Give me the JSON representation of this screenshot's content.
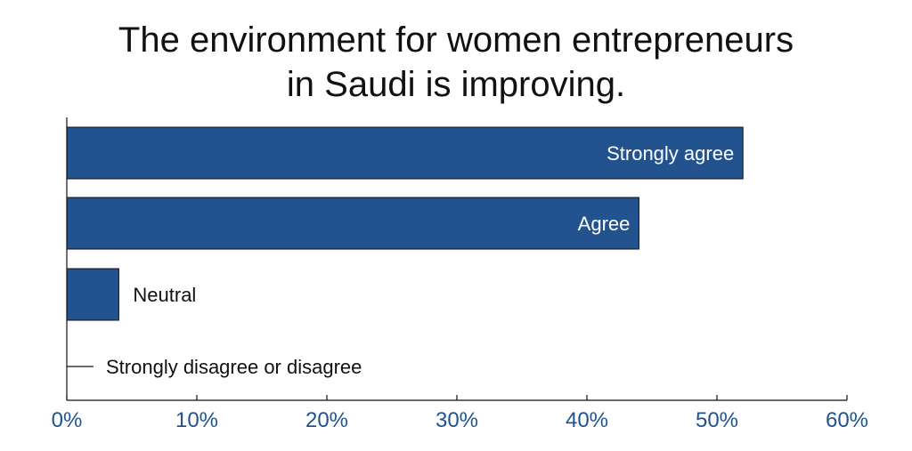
{
  "chart_data": {
    "type": "bar",
    "orientation": "horizontal",
    "title_lines": [
      "The environment for women entrepreneurs",
      "in Saudi is improving."
    ],
    "categories": [
      "Strongly agree",
      "Agree",
      "Neutral",
      "Strongly disagree or disagree"
    ],
    "values": [
      52,
      44,
      4,
      1.5
    ],
    "xlim": [
      0,
      60
    ],
    "xticks": [
      0,
      10,
      20,
      30,
      40,
      50,
      60
    ],
    "xtick_labels": [
      "0%",
      "10%",
      "20%",
      "30%",
      "40%",
      "50%",
      "60%"
    ],
    "grid": false,
    "legend": "none",
    "colors": {
      "bar": "#22538f",
      "tick_label": "#22538f",
      "text": "#111111"
    }
  }
}
